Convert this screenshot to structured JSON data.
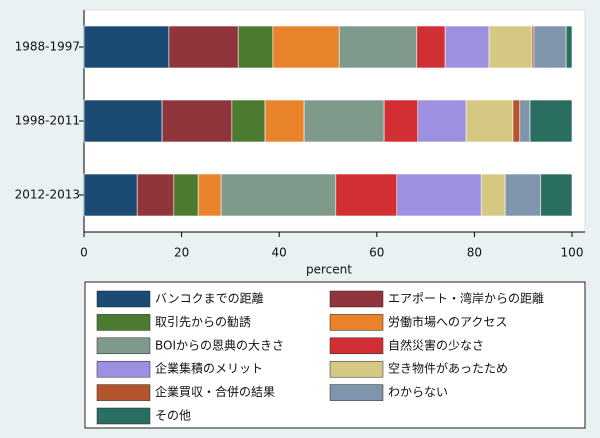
{
  "chart_data": {
    "type": "stacked-barh",
    "categories": [
      "1988-1997",
      "1998-2011",
      "2012-2013"
    ],
    "xlabel": "percent",
    "xlim": [
      0,
      100
    ],
    "xticks": [
      0,
      20,
      40,
      60,
      80,
      100
    ],
    "legend": "bottom",
    "series": [
      {
        "name": "バンコクまでの距離",
        "color": "#1b4a72",
        "values": [
          17.4,
          16.0,
          10.9
        ]
      },
      {
        "name": "エアポート・湾岸からの距離",
        "color": "#90353c",
        "values": [
          14.2,
          14.3,
          7.5
        ]
      },
      {
        "name": "取引先からの勧誘",
        "color": "#4b7a30",
        "values": [
          7.1,
          6.8,
          5.0
        ]
      },
      {
        "name": "労働市場へのアクセス",
        "color": "#e8822b",
        "values": [
          13.6,
          8.0,
          4.7
        ]
      },
      {
        "name": "BOIからの恩典の大きさ",
        "color": "#7f9a8b",
        "values": [
          15.9,
          16.4,
          23.5
        ]
      },
      {
        "name": "自然災害の少なさ",
        "color": "#d12f34",
        "values": [
          5.8,
          6.9,
          12.5
        ]
      },
      {
        "name": "企業集積のメリット",
        "color": "#9e90e0",
        "values": [
          9.0,
          9.9,
          17.3
        ]
      },
      {
        "name": "空き物件があったため",
        "color": "#d5c883",
        "values": [
          8.8,
          9.6,
          4.9
        ]
      },
      {
        "name": "企業買収・合併の結果",
        "color": "#b4552d",
        "values": [
          0.4,
          1.4,
          0
        ]
      },
      {
        "name": "わからない",
        "color": "#7f95ab",
        "values": [
          6.6,
          2.1,
          7.3
        ]
      },
      {
        "name": "その他",
        "color": "#2a6e62",
        "values": [
          1.2,
          8.6,
          6.4
        ]
      }
    ]
  }
}
